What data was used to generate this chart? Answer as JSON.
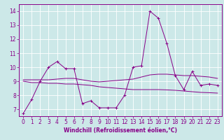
{
  "xlabel": "Windchill (Refroidissement éolien,°C)",
  "xlim": [
    -0.5,
    23.5
  ],
  "ylim": [
    6.5,
    14.5
  ],
  "yticks": [
    7,
    8,
    9,
    10,
    11,
    12,
    13,
    14
  ],
  "xticks": [
    0,
    1,
    2,
    3,
    4,
    5,
    6,
    7,
    8,
    9,
    10,
    11,
    12,
    13,
    14,
    15,
    16,
    17,
    18,
    19,
    20,
    21,
    22,
    23
  ],
  "bg_color": "#cce8e8",
  "line_color": "#880088",
  "grid_color": "#ffffff",
  "line1_x": [
    0,
    1,
    2,
    3,
    4,
    5,
    6,
    7,
    8,
    9,
    10,
    11,
    12,
    13,
    14,
    15,
    16,
    17,
    18,
    19,
    20,
    21,
    22,
    23
  ],
  "line1_y": [
    6.7,
    7.7,
    9.0,
    10.0,
    10.4,
    9.9,
    9.9,
    7.4,
    7.6,
    7.1,
    7.1,
    7.1,
    8.0,
    10.0,
    10.1,
    14.0,
    13.5,
    11.7,
    9.4,
    8.4,
    9.7,
    8.7,
    8.8,
    8.7
  ],
  "line2_x": [
    0,
    1,
    2,
    3,
    4,
    5,
    6,
    7,
    8,
    9,
    10,
    11,
    12,
    13,
    14,
    15,
    16,
    17,
    18,
    19,
    20,
    21,
    22,
    23
  ],
  "line2_y": [
    9.1,
    9.1,
    9.1,
    9.1,
    9.15,
    9.2,
    9.2,
    9.1,
    9.0,
    8.95,
    9.0,
    9.05,
    9.1,
    9.15,
    9.3,
    9.45,
    9.5,
    9.5,
    9.45,
    9.4,
    9.4,
    9.35,
    9.3,
    9.2
  ],
  "line3_x": [
    0,
    1,
    2,
    3,
    4,
    5,
    6,
    7,
    8,
    9,
    10,
    11,
    12,
    13,
    14,
    15,
    16,
    17,
    18,
    19,
    20,
    21,
    22,
    23
  ],
  "line3_y": [
    9.0,
    8.9,
    8.9,
    8.85,
    8.85,
    8.8,
    8.8,
    8.75,
    8.7,
    8.6,
    8.55,
    8.5,
    8.45,
    8.4,
    8.4,
    8.4,
    8.4,
    8.38,
    8.35,
    8.3,
    8.25,
    8.2,
    8.18,
    8.15
  ],
  "xlabel_fontsize": 5.5,
  "tick_fontsize": 5.5,
  "linewidth": 0.7,
  "markersize": 2.5
}
